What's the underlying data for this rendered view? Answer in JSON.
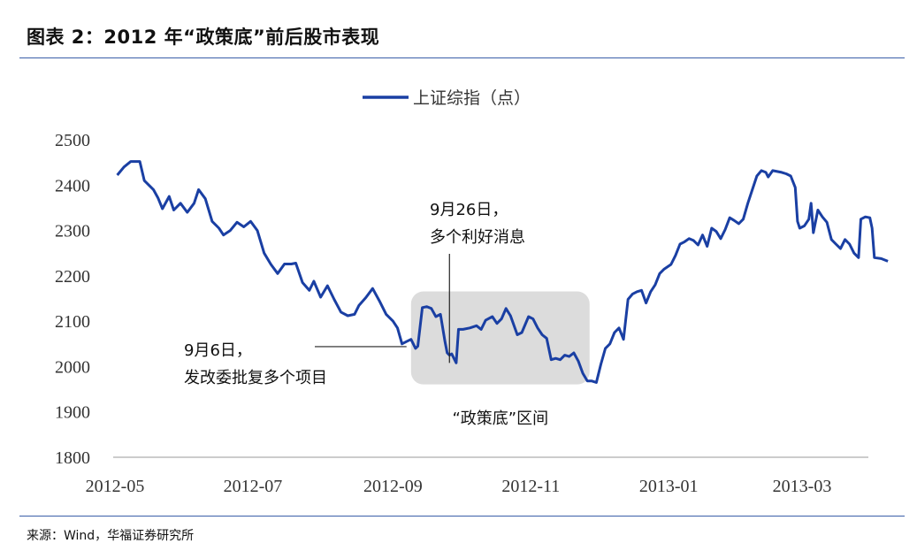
{
  "page": {
    "title": "图表 2：2012 年“政策底”前后股市表现",
    "source": "来源：Wind，华福证券研究所"
  },
  "chart_data": {
    "type": "line",
    "title": "",
    "xlabel": "",
    "ylabel": "",
    "ylim": [
      1800,
      2500
    ],
    "yticks": [
      "2500",
      "2400",
      "2300",
      "2200",
      "2100",
      "2000",
      "1900",
      "1800"
    ],
    "xticks": [
      "2012-05",
      "2012-07",
      "2012-09",
      "2012-11",
      "2013-01",
      "2013-03"
    ],
    "legend": {
      "position": "top-center"
    },
    "grid": false,
    "colors": {
      "line": "#1a3fa3",
      "shade": "#dcdcdc"
    },
    "series": [
      {
        "name": "上证综指（点）",
        "points": [
          [
            "2012-05-02",
            2422
          ],
          [
            "2012-05-05",
            2440
          ],
          [
            "2012-05-08",
            2452
          ],
          [
            "2012-05-12",
            2452
          ],
          [
            "2012-05-14",
            2410
          ],
          [
            "2012-05-18",
            2390
          ],
          [
            "2012-05-20",
            2372
          ],
          [
            "2012-05-22",
            2348
          ],
          [
            "2012-05-25",
            2375
          ],
          [
            "2012-05-27",
            2345
          ],
          [
            "2012-05-30",
            2360
          ],
          [
            "2012-06-02",
            2340
          ],
          [
            "2012-06-05",
            2360
          ],
          [
            "2012-06-07",
            2390
          ],
          [
            "2012-06-10",
            2370
          ],
          [
            "2012-06-13",
            2320
          ],
          [
            "2012-06-16",
            2305
          ],
          [
            "2012-06-18",
            2290
          ],
          [
            "2012-06-21",
            2300
          ],
          [
            "2012-06-24",
            2318
          ],
          [
            "2012-06-27",
            2308
          ],
          [
            "2012-06-30",
            2320
          ],
          [
            "2012-07-03",
            2300
          ],
          [
            "2012-07-06",
            2250
          ],
          [
            "2012-07-09",
            2225
          ],
          [
            "2012-07-12",
            2205
          ],
          [
            "2012-07-15",
            2226
          ],
          [
            "2012-07-18",
            2226
          ],
          [
            "2012-07-20",
            2228
          ],
          [
            "2012-07-23",
            2185
          ],
          [
            "2012-07-26",
            2168
          ],
          [
            "2012-07-28",
            2188
          ],
          [
            "2012-07-31",
            2153
          ],
          [
            "2012-08-03",
            2178
          ],
          [
            "2012-08-06",
            2148
          ],
          [
            "2012-08-09",
            2120
          ],
          [
            "2012-08-12",
            2112
          ],
          [
            "2012-08-15",
            2115
          ],
          [
            "2012-08-17",
            2135
          ],
          [
            "2012-08-20",
            2152
          ],
          [
            "2012-08-23",
            2172
          ],
          [
            "2012-08-26",
            2145
          ],
          [
            "2012-08-29",
            2115
          ],
          [
            "2012-09-01",
            2100
          ],
          [
            "2012-09-03",
            2085
          ],
          [
            "2012-09-04",
            2068
          ],
          [
            "2012-09-05",
            2050
          ],
          [
            "2012-09-07",
            2055
          ],
          [
            "2012-09-09",
            2060
          ],
          [
            "2012-09-11",
            2040
          ],
          [
            "2012-09-12",
            2045
          ],
          [
            "2012-09-14",
            2130
          ],
          [
            "2012-09-16",
            2132
          ],
          [
            "2012-09-18",
            2128
          ],
          [
            "2012-09-20",
            2110
          ],
          [
            "2012-09-22",
            2115
          ],
          [
            "2012-09-24",
            2055
          ],
          [
            "2012-09-25",
            2030
          ],
          [
            "2012-09-26",
            2025
          ],
          [
            "2012-09-27",
            2028
          ],
          [
            "2012-09-29",
            2008
          ],
          [
            "2012-09-30",
            2082
          ],
          [
            "2012-10-02",
            2082
          ],
          [
            "2012-10-05",
            2085
          ],
          [
            "2012-10-08",
            2090
          ],
          [
            "2012-10-10",
            2082
          ],
          [
            "2012-10-12",
            2102
          ],
          [
            "2012-10-15",
            2110
          ],
          [
            "2012-10-17",
            2095
          ],
          [
            "2012-10-19",
            2105
          ],
          [
            "2012-10-21",
            2128
          ],
          [
            "2012-10-23",
            2112
          ],
          [
            "2012-10-26",
            2070
          ],
          [
            "2012-10-28",
            2075
          ],
          [
            "2012-10-31",
            2110
          ],
          [
            "2012-11-02",
            2105
          ],
          [
            "2012-11-04",
            2085
          ],
          [
            "2012-11-06",
            2070
          ],
          [
            "2012-11-08",
            2062
          ],
          [
            "2012-11-10",
            2015
          ],
          [
            "2012-11-12",
            2018
          ],
          [
            "2012-11-14",
            2015
          ],
          [
            "2012-11-16",
            2025
          ],
          [
            "2012-11-18",
            2022
          ],
          [
            "2012-11-20",
            2030
          ],
          [
            "2012-11-22",
            2012
          ],
          [
            "2012-11-24",
            1985
          ],
          [
            "2012-11-26",
            1968
          ],
          [
            "2012-11-28",
            1968
          ],
          [
            "2012-11-30",
            1965
          ],
          [
            "2012-12-02",
            2005
          ],
          [
            "2012-12-04",
            2040
          ],
          [
            "2012-12-06",
            2050
          ],
          [
            "2012-12-08",
            2075
          ],
          [
            "2012-12-10",
            2085
          ],
          [
            "2012-12-12",
            2060
          ],
          [
            "2012-12-14",
            2148
          ],
          [
            "2012-12-16",
            2160
          ],
          [
            "2012-12-18",
            2165
          ],
          [
            "2012-12-20",
            2168
          ],
          [
            "2012-12-22",
            2140
          ],
          [
            "2012-12-24",
            2165
          ],
          [
            "2012-12-26",
            2180
          ],
          [
            "2012-12-28",
            2205
          ],
          [
            "2012-12-30",
            2215
          ],
          [
            "2013-01-02",
            2225
          ],
          [
            "2013-01-04",
            2245
          ],
          [
            "2013-01-06",
            2270
          ],
          [
            "2013-01-08",
            2275
          ],
          [
            "2013-01-10",
            2282
          ],
          [
            "2013-01-12",
            2278
          ],
          [
            "2013-01-14",
            2268
          ],
          [
            "2013-01-16",
            2290
          ],
          [
            "2013-01-18",
            2265
          ],
          [
            "2013-01-20",
            2305
          ],
          [
            "2013-01-22",
            2298
          ],
          [
            "2013-01-24",
            2282
          ],
          [
            "2013-01-26",
            2302
          ],
          [
            "2013-01-28",
            2328
          ],
          [
            "2013-01-30",
            2322
          ],
          [
            "2013-02-01",
            2315
          ],
          [
            "2013-02-03",
            2325
          ],
          [
            "2013-02-05",
            2360
          ],
          [
            "2013-02-07",
            2390
          ],
          [
            "2013-02-09",
            2420
          ],
          [
            "2013-02-11",
            2432
          ],
          [
            "2013-02-13",
            2428
          ],
          [
            "2013-02-14",
            2418
          ],
          [
            "2013-02-16",
            2432
          ],
          [
            "2013-02-18",
            2430
          ],
          [
            "2013-02-20",
            2428
          ],
          [
            "2013-02-22",
            2425
          ],
          [
            "2013-02-24",
            2420
          ],
          [
            "2013-02-26",
            2395
          ],
          [
            "2013-02-27",
            2320
          ],
          [
            "2013-02-28",
            2305
          ],
          [
            "2013-03-02",
            2310
          ],
          [
            "2013-03-04",
            2325
          ],
          [
            "2013-03-05",
            2360
          ],
          [
            "2013-03-06",
            2295
          ],
          [
            "2013-03-08",
            2345
          ],
          [
            "2013-03-10",
            2330
          ],
          [
            "2013-03-12",
            2318
          ],
          [
            "2013-03-14",
            2280
          ],
          [
            "2013-03-16",
            2270
          ],
          [
            "2013-03-18",
            2260
          ],
          [
            "2013-03-20",
            2280
          ],
          [
            "2013-03-22",
            2270
          ],
          [
            "2013-03-24",
            2250
          ],
          [
            "2013-03-26",
            2240
          ],
          [
            "2013-03-27",
            2325
          ],
          [
            "2013-03-29",
            2330
          ],
          [
            "2013-03-31",
            2328
          ],
          [
            "2013-04-01",
            2305
          ],
          [
            "2013-04-02",
            2240
          ],
          [
            "2013-04-05",
            2238
          ],
          [
            "2013-04-08",
            2232
          ]
        ]
      }
    ],
    "shaded_region": {
      "x_start": "2012-09-09",
      "x_end": "2012-11-27",
      "y_min": 1980,
      "y_max": 2150,
      "label": "“政策底”区间"
    },
    "annotations": [
      {
        "lines": [
          "9月6日，",
          "发改委批复多个项目"
        ],
        "x": "2012-09-07",
        "y": 2040
      },
      {
        "lines": [
          "9月26日，",
          "多个利好消息"
        ],
        "x": "2012-09-26",
        "y": 2008
      }
    ]
  }
}
